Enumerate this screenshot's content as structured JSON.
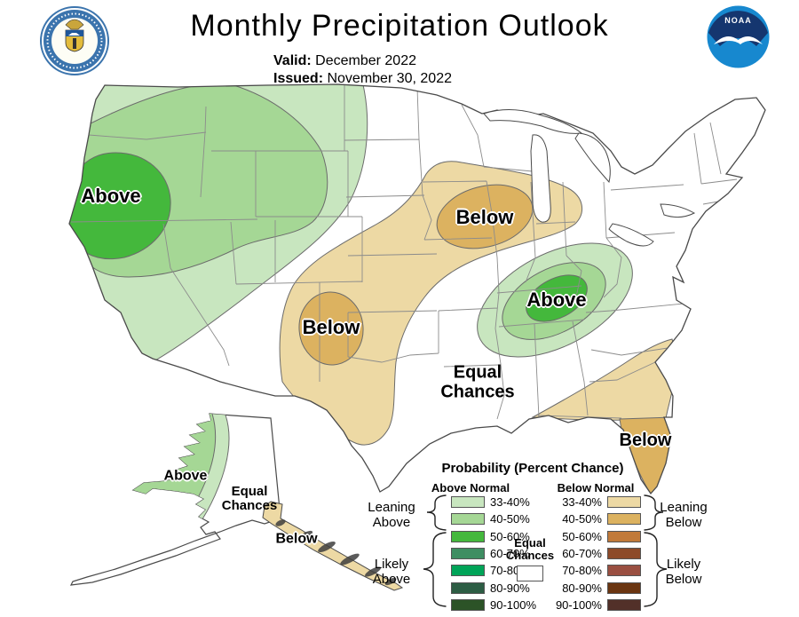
{
  "header": {
    "title": "Monthly Precipitation Outlook",
    "valid_label": "Valid:",
    "valid_value": "December 2022",
    "issued_label": "Issued:",
    "issued_value": "November 30, 2022",
    "noaa_logo_text": "NOAA"
  },
  "map_labels": {
    "west_above": "Above",
    "midwest_below": "Below",
    "southplains_below": "Below",
    "tnvalley_above": "Above",
    "conus_equal": "Equal\nChances",
    "florida_below": "Below",
    "alaska_above": "Above",
    "alaska_equal": "Equal\nChances",
    "alaska_below": "Below"
  },
  "legend": {
    "title": "Probability (Percent Chance)",
    "above_header": "Above Normal",
    "below_header": "Below Normal",
    "equal_chances": "Equal\nChances",
    "leaning_above": "Leaning\nAbove",
    "likely_above": "Likely\nAbove",
    "leaning_below": "Leaning\nBelow",
    "likely_below": "Likely\nBelow",
    "rows_above": [
      {
        "range": "33-40%",
        "color": "#c8e6bf"
      },
      {
        "range": "40-50%",
        "color": "#a5d795"
      },
      {
        "range": "50-60%",
        "color": "#44b83c"
      },
      {
        "range": "60-70%",
        "color": "#3e8e62"
      },
      {
        "range": "70-80%",
        "color": "#00a458"
      },
      {
        "range": "80-90%",
        "color": "#2d5d44"
      },
      {
        "range": "90-100%",
        "color": "#2c5327"
      }
    ],
    "rows_below": [
      {
        "range": "33-40%",
        "color": "#edd9a4"
      },
      {
        "range": "40-50%",
        "color": "#dcb260"
      },
      {
        "range": "50-60%",
        "color": "#c17a3a"
      },
      {
        "range": "60-70%",
        "color": "#8d4a29"
      },
      {
        "range": "70-80%",
        "color": "#9a4f41"
      },
      {
        "range": "80-90%",
        "color": "#6a3511"
      },
      {
        "range": "90-100%",
        "color": "#523029"
      }
    ],
    "equal_box_color": "#ffffff"
  },
  "region_colors": {
    "above_33_40": "#c8e6bf",
    "above_40_50": "#a5d795",
    "above_50_60": "#44b83c",
    "below_33_40": "#edd9a4",
    "below_40_50": "#dcb260"
  }
}
